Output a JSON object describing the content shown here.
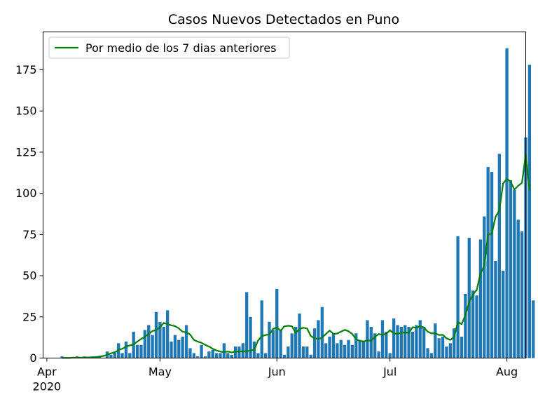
{
  "chart_data": {
    "type": "bar",
    "title": "Casos Nuevos Detectados en Puno",
    "xlabel": "",
    "ylabel": "",
    "x_start": "2020-03-31",
    "x_end": "2020-08-06",
    "ylim": [
      0,
      198
    ],
    "yticks": [
      0,
      25,
      50,
      75,
      100,
      125,
      150,
      175
    ],
    "xticks": [
      {
        "date": "2020-04-01",
        "label": "Apr",
        "sub": "2020"
      },
      {
        "date": "2020-05-01",
        "label": "May",
        "sub": ""
      },
      {
        "date": "2020-06-01",
        "label": "Jun",
        "sub": ""
      },
      {
        "date": "2020-07-01",
        "label": "Jul",
        "sub": ""
      },
      {
        "date": "2020-08-01",
        "label": "Aug",
        "sub": ""
      }
    ],
    "legend": {
      "position": "top-left",
      "entries": [
        "Por medio de los 7 dias anteriores"
      ]
    },
    "colors": {
      "bars": "#1f77b4",
      "line": "#008000"
    },
    "bars_start_date": "2020-04-05",
    "bars": [
      1,
      0,
      0,
      0,
      1,
      0,
      1,
      0,
      1,
      0,
      1,
      0,
      4,
      2,
      4,
      9,
      3,
      10,
      3,
      16,
      8,
      8,
      17,
      20,
      14,
      28,
      22,
      19,
      29,
      10,
      14,
      11,
      13,
      20,
      6,
      3,
      1,
      8,
      1,
      4,
      5,
      3,
      3,
      9,
      3,
      2,
      7,
      7,
      9,
      40,
      25,
      10,
      3,
      35,
      3,
      22,
      17,
      42,
      17,
      2,
      7,
      15,
      19,
      27,
      7,
      7,
      2,
      18,
      23,
      31,
      9,
      13,
      15,
      9,
      11,
      8,
      11,
      8,
      15,
      11,
      10,
      23,
      19,
      15,
      4,
      23,
      16,
      3,
      24,
      20,
      19,
      20,
      19,
      16,
      20,
      23,
      19,
      6,
      3,
      21,
      12,
      13,
      7,
      9,
      18,
      74,
      13,
      39,
      73,
      41,
      38,
      72,
      86,
      116,
      113,
      59,
      124,
      53,
      188,
      108,
      102,
      84,
      77,
      134,
      178,
      35
    ],
    "series": [
      {
        "name": "Por medio de los 7 dias anteriores",
        "type": "line",
        "values": [
          0.1,
          0.1,
          0.1,
          0.3,
          0.3,
          0.3,
          0.3,
          0.4,
          0.4,
          0.6,
          0.9,
          1.3,
          1.9,
          2.9,
          3.3,
          4.9,
          5.7,
          6.9,
          7.7,
          8.3,
          10.0,
          11.6,
          12.9,
          14.7,
          16.4,
          17.0,
          18.7,
          21.3,
          20.6,
          19.9,
          19.4,
          18.0,
          16.0,
          15.7,
          14.3,
          11.0,
          10.0,
          9.3,
          8.0,
          7.0,
          5.6,
          4.6,
          3.9,
          3.6,
          4.0,
          3.4,
          4.0,
          4.0,
          4.1,
          4.1,
          4.6,
          5.0,
          10.6,
          13.3,
          14.0,
          14.3,
          17.7,
          18.6,
          16.6,
          19.3,
          19.6,
          19.3,
          15.3,
          17.6,
          18.4,
          18.0,
          13.4,
          12.0,
          11.6,
          12.4,
          14.6,
          16.7,
          14.7,
          14.9,
          16.0,
          17.1,
          16.3,
          14.6,
          11.4,
          10.4,
          10.1,
          10.7,
          10.6,
          12.9,
          14.6,
          14.1,
          14.7,
          16.9,
          14.9,
          14.7,
          15.3,
          15.6,
          15.3,
          18.7,
          18.4,
          19.3,
          18.6,
          16.0,
          15.0,
          15.0,
          14.0,
          14.1,
          12.0,
          11.0,
          12.7,
          21.9,
          20.6,
          26.0,
          34.0,
          38.6,
          41.3,
          51.4,
          56.0,
          75.0,
          75.6,
          85.7,
          89.7,
          106.0,
          108.9,
          107.0,
          102.3,
          104.6,
          106.4,
          123.7,
          102.0
        ]
      }
    ]
  }
}
